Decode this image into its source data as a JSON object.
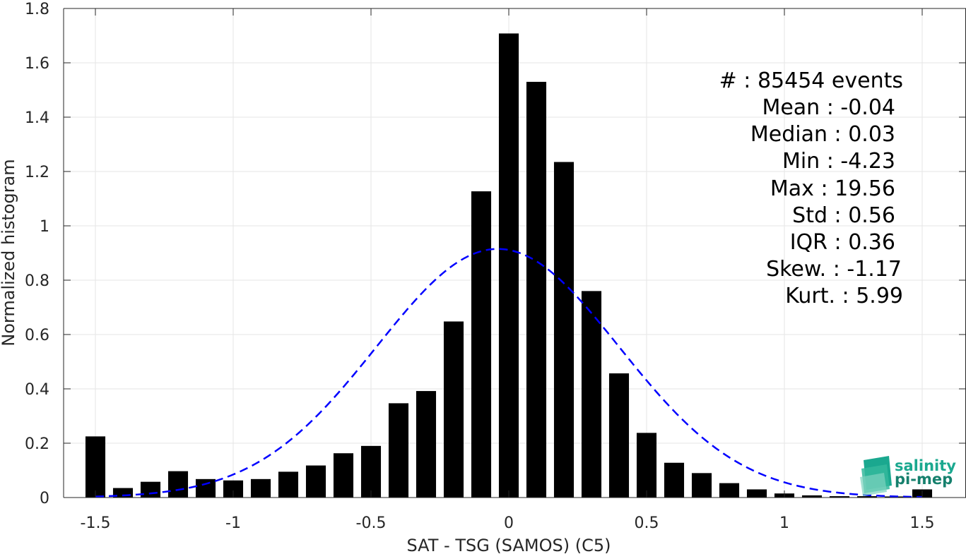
{
  "chart_data": {
    "type": "bar",
    "xlabel": "SAT - TSG (SAMOS) (C5)",
    "ylabel": "Normalized histogram",
    "xlim": [
      -1.55,
      1.55
    ],
    "ylim": [
      0,
      1.8
    ],
    "grid": true,
    "x_ticks": [
      -1.5,
      -1,
      -0.5,
      0,
      0.5,
      1,
      1.5
    ],
    "x_tick_labels": [
      "-1.5",
      "-1",
      "-0.5",
      "0",
      "0.5",
      "1",
      "1.5"
    ],
    "y_ticks": [
      0,
      0.2,
      0.4,
      0.6,
      0.8,
      1,
      1.2,
      1.4,
      1.6,
      1.8
    ],
    "y_tick_labels": [
      "0",
      "0.2",
      "0.4",
      "0.6",
      "0.8",
      "1",
      "1.2",
      "1.4",
      "1.6",
      "1.8"
    ],
    "bin_width": 0.1,
    "x": [
      -1.5,
      -1.4,
      -1.3,
      -1.2,
      -1.1,
      -1.0,
      -0.9,
      -0.8,
      -0.7,
      -0.6,
      -0.5,
      -0.4,
      -0.3,
      -0.2,
      -0.1,
      0.0,
      0.1,
      0.2,
      0.3,
      0.4,
      0.5,
      0.6,
      0.7,
      0.8,
      0.9,
      1.0,
      1.1,
      1.2,
      1.3,
      1.4,
      1.5
    ],
    "values": [
      0.225,
      0.035,
      0.058,
      0.097,
      0.068,
      0.063,
      0.068,
      0.095,
      0.118,
      0.163,
      0.19,
      0.347,
      0.392,
      0.648,
      1.127,
      1.708,
      1.53,
      1.235,
      0.76,
      0.457,
      0.238,
      0.128,
      0.09,
      0.053,
      0.03,
      0.015,
      0.008,
      0.005,
      0.005,
      0.004,
      0.03
    ],
    "bar_color": "#000000",
    "fit_curve": {
      "style": "dashed",
      "color": "#0000ff",
      "mean": -0.04,
      "std": 0.44,
      "peak": 0.915
    },
    "stats": [
      "#  : 85454 events",
      "Mean : -0.04",
      "Median : 0.03",
      "Min : -4.23",
      "Max : 19.56",
      "Std : 0.56",
      "IQR : 0.36",
      "Skew. : -1.17",
      "Kurt. : 5.99"
    ],
    "logo": {
      "line1": "salinity",
      "line2": "pi-mep",
      "color1": "#1aa88f",
      "color2": "#16806d"
    }
  }
}
